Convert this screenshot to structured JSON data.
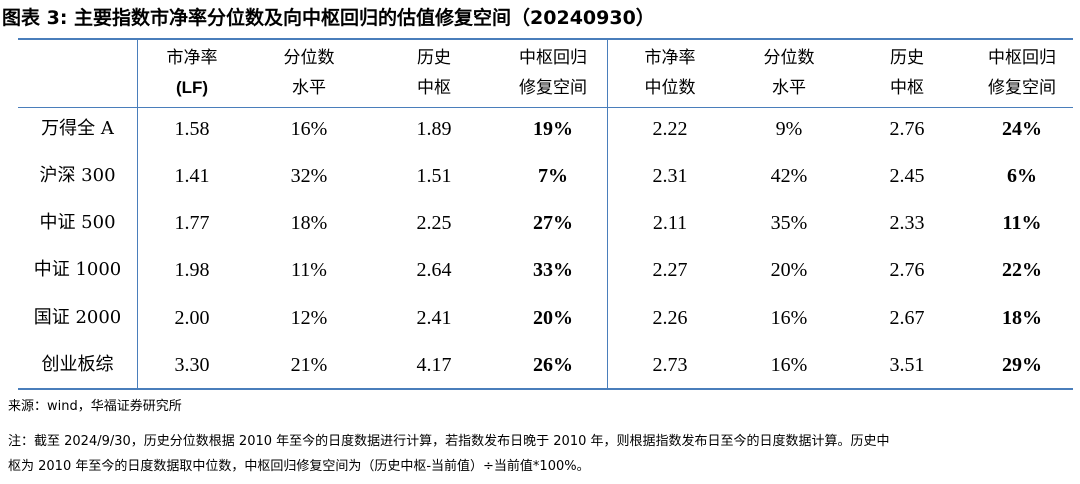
{
  "title": "图表 3:  主要指数市净率分位数及向中枢回归的估值修复空间（20240930）",
  "headers": [
    {
      "l1": "市净率",
      "l2": "(LF)"
    },
    {
      "l1": "分位数",
      "l2": "水平"
    },
    {
      "l1": "历史",
      "l2": "中枢"
    },
    {
      "l1": "中枢回归",
      "l2": "修复空间"
    },
    {
      "l1": "市净率",
      "l2": "中位数"
    },
    {
      "l1": "分位数",
      "l2": "水平"
    },
    {
      "l1": "历史",
      "l2": "中枢"
    },
    {
      "l1": "中枢回归",
      "l2": "修复空间"
    }
  ],
  "rows": [
    {
      "name": "万得全 A",
      "values": [
        "1.58",
        "16%",
        "1.89",
        "19%",
        "2.22",
        "9%",
        "2.76",
        "24%"
      ]
    },
    {
      "name": "沪深 300",
      "values": [
        "1.41",
        "32%",
        "1.51",
        "7%",
        "2.31",
        "42%",
        "2.45",
        "6%"
      ]
    },
    {
      "name": "中证 500",
      "values": [
        "1.77",
        "18%",
        "2.25",
        "27%",
        "2.11",
        "35%",
        "2.33",
        "11%"
      ]
    },
    {
      "name": "中证 1000",
      "values": [
        "1.98",
        "11%",
        "2.64",
        "33%",
        "2.27",
        "20%",
        "2.76",
        "22%"
      ]
    },
    {
      "name": "国证 2000",
      "values": [
        "2.00",
        "12%",
        "2.41",
        "20%",
        "2.26",
        "16%",
        "2.67",
        "18%"
      ]
    },
    {
      "name": "创业板综",
      "values": [
        "3.30",
        "21%",
        "4.17",
        "26%",
        "2.73",
        "16%",
        "3.51",
        "29%"
      ]
    }
  ],
  "source": "来源：wind，华福证券研究所",
  "note_line1": "注：截至 2024/9/30，历史分位数根据 2010 年至今的日度数据进行计算，若指数发布日晚于 2010 年，则根据指数发布日至今的日度数据计算。历史中",
  "note_line2": "枢为 2010 年至今的日度数据取中位数，中枢回归修复空间为（历史中枢-当前值）÷当前值*100%。",
  "colors": {
    "rule": "#4a7ebb"
  }
}
